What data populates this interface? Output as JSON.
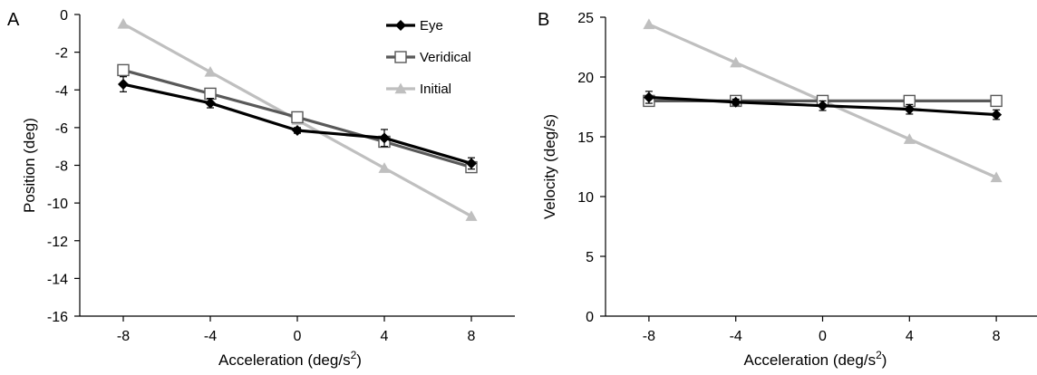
{
  "chart_data": [
    {
      "panel_label": "A",
      "type": "line",
      "xlabel": "Acceleration (deg/s",
      "xlabel_sup": "2",
      "xlabel_close": ")",
      "ylabel": "Position (deg)",
      "x": [
        -8,
        -4,
        0,
        4,
        8
      ],
      "x_tick_labels": [
        "-8",
        "-4",
        "0",
        "4",
        "8"
      ],
      "xlim": [
        -10,
        10
      ],
      "ylim": [
        -16,
        0
      ],
      "y_ticks": [
        0,
        -2,
        -4,
        -6,
        -8,
        -10,
        -12,
        -14,
        -16
      ],
      "y_tick_labels": [
        "0",
        "-2",
        "-4",
        "-6",
        "-8",
        "-10",
        "-12",
        "-14",
        "-16"
      ],
      "series": [
        {
          "name": "Initial",
          "marker": "triangle",
          "color": "#bfbfbf",
          "values": [
            -0.5,
            -3.05,
            -5.6,
            -8.15,
            -10.7
          ]
        },
        {
          "name": "Veridical",
          "marker": "square",
          "color": "#595959",
          "values": [
            -2.95,
            -4.2,
            -5.45,
            -6.75,
            -8.1
          ]
        },
        {
          "name": "Eye",
          "marker": "diamond",
          "color": "#000000",
          "values": [
            -3.7,
            -4.7,
            -6.15,
            -6.55,
            -7.9
          ],
          "errors": [
            0.4,
            0.25,
            0.15,
            0.45,
            0.3
          ]
        }
      ],
      "legend_position": "top-right"
    },
    {
      "panel_label": "B",
      "type": "line",
      "xlabel": "Acceleration (deg/s",
      "xlabel_sup": "2",
      "xlabel_close": ")",
      "ylabel": "Velocity (deg/s)",
      "x": [
        -8,
        -4,
        0,
        4,
        8
      ],
      "x_tick_labels": [
        "-8",
        "-4",
        "0",
        "4",
        "8"
      ],
      "xlim": [
        -10,
        10
      ],
      "ylim": [
        0,
        25
      ],
      "y_ticks": [
        0,
        5,
        10,
        15,
        20,
        25
      ],
      "y_tick_labels": [
        "0",
        "5",
        "10",
        "15",
        "20",
        "25"
      ],
      "series": [
        {
          "name": "Initial",
          "marker": "triangle",
          "color": "#bfbfbf",
          "values": [
            24.4,
            21.2,
            18.0,
            14.8,
            11.6
          ]
        },
        {
          "name": "Veridical",
          "marker": "square",
          "color": "#595959",
          "values": [
            18.0,
            18.0,
            18.0,
            18.0,
            18.0
          ]
        },
        {
          "name": "Eye",
          "marker": "diamond",
          "color": "#000000",
          "values": [
            18.3,
            17.9,
            17.6,
            17.3,
            16.85
          ],
          "errors": [
            0.5,
            0.25,
            0.4,
            0.4,
            0.4
          ]
        }
      ]
    }
  ]
}
